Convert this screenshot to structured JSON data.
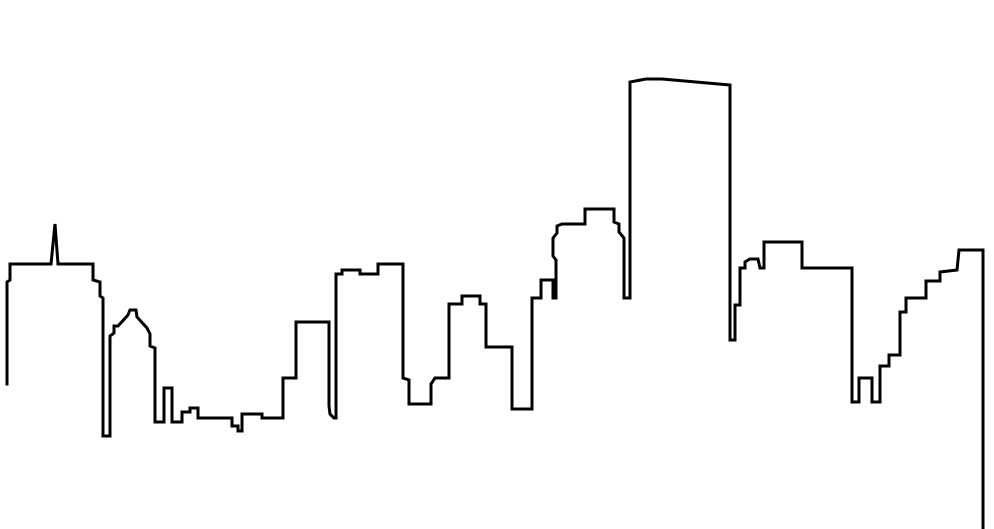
{
  "illustration": {
    "subject": "city-skyline-outline",
    "style": "single-line-art",
    "colors": {
      "background": "#ffffff",
      "stroke": "#000000"
    }
  }
}
